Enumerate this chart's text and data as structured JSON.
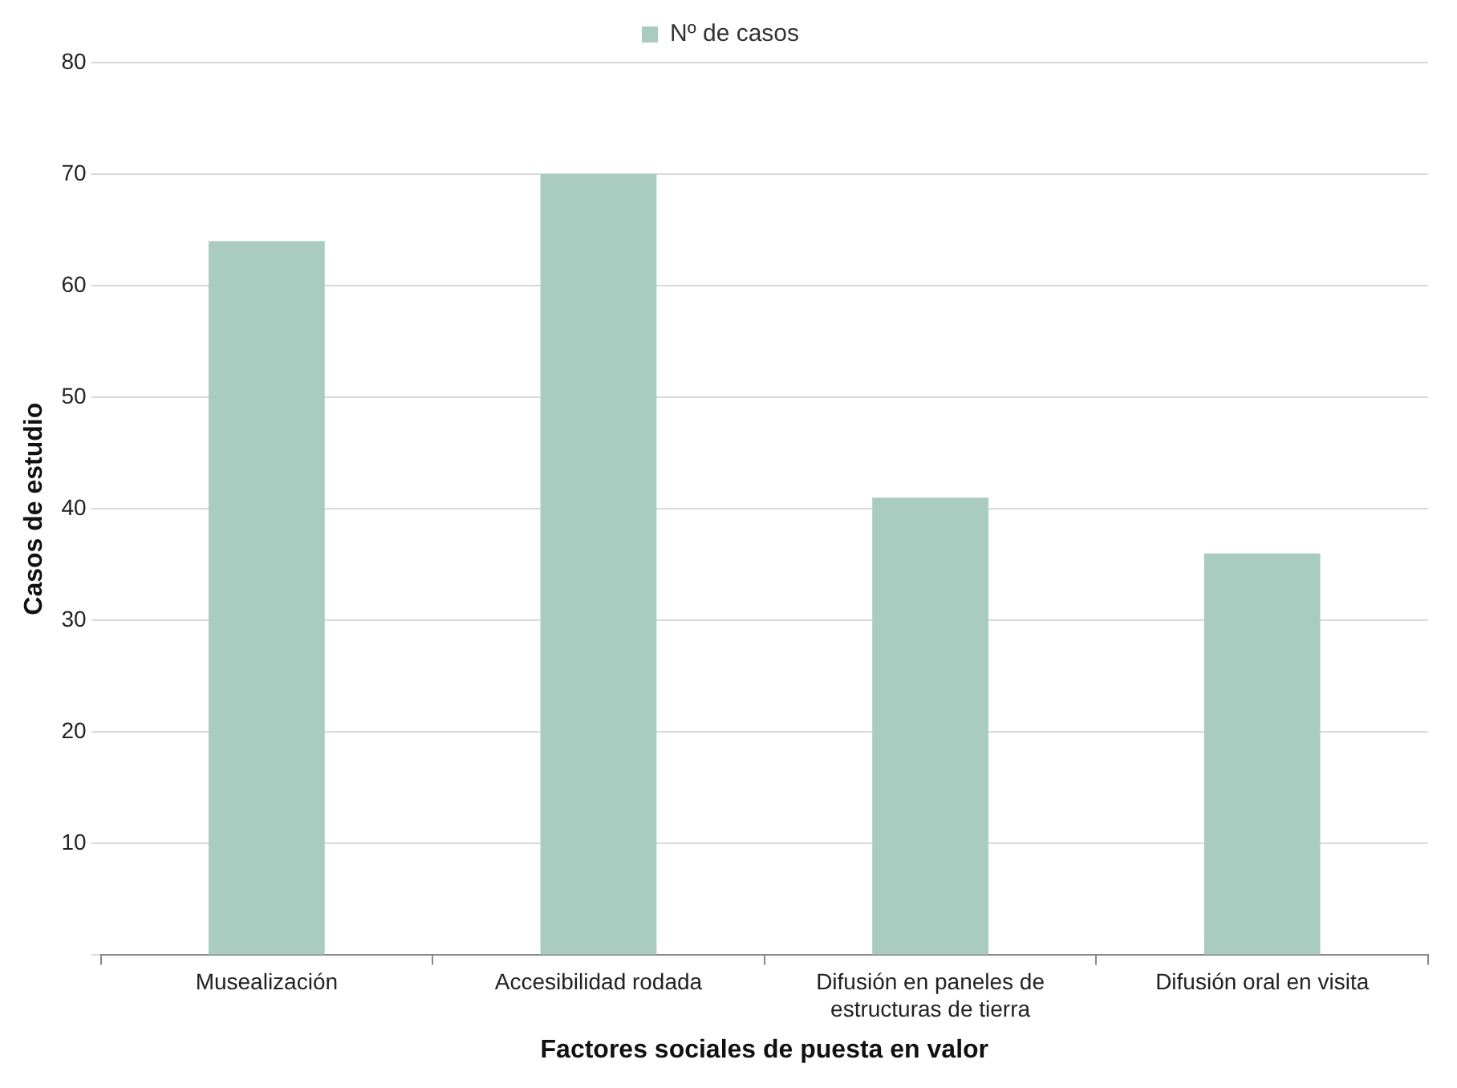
{
  "chart_data": {
    "type": "bar",
    "xlabel": "Factores sociales de puesta en valor",
    "ylabel": "Casos de estudio",
    "categories": [
      "Musealización",
      "Accesibilidad rodada",
      "Difusión en paneles de estructuras de tierra",
      "Difusión oral en visita"
    ],
    "series": [
      {
        "name": "Nº de casos",
        "color": "#a9cbc0",
        "values": [
          64,
          70,
          41,
          36
        ]
      }
    ],
    "ylim": [
      0,
      80
    ],
    "yticks": [
      {
        "value": 0,
        "label": null
      },
      10,
      20,
      30,
      40,
      50,
      60,
      70,
      80
    ],
    "grid": "y",
    "legend": "top"
  }
}
